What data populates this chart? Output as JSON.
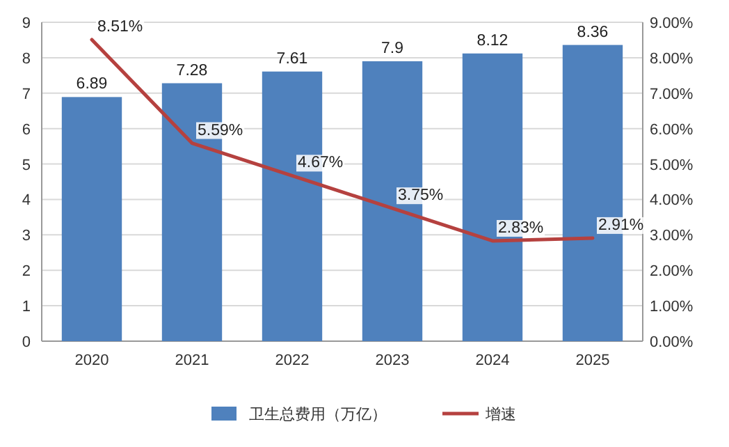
{
  "chart_data": {
    "type": "bar",
    "categories": [
      "2020",
      "2021",
      "2022",
      "2023",
      "2024",
      "2025"
    ],
    "series": [
      {
        "name": "卫生总费用（万亿）",
        "color": "#4f81bd",
        "values": [
          6.89,
          7.28,
          7.61,
          7.9,
          8.12,
          8.36
        ],
        "value_labels": [
          "6.89",
          "7.28",
          "7.61",
          "7.9",
          "8.12",
          "8.36"
        ]
      },
      {
        "name": "增速",
        "type": "line",
        "axis": "y2",
        "color": "#b5413f",
        "values": [
          8.51,
          5.59,
          4.67,
          3.75,
          2.83,
          2.91
        ],
        "value_labels": [
          "8.51%",
          "5.59%",
          "4.67%",
          "3.75%",
          "2.83%",
          "2.91%"
        ]
      }
    ],
    "ylim": [
      0,
      9
    ],
    "yticks": [
      0,
      1,
      2,
      3,
      4,
      5,
      6,
      7,
      8,
      9
    ],
    "y2lim": [
      0,
      9
    ],
    "y2ticks": [
      {
        "value": 0,
        "label": "0.00%"
      },
      {
        "value": 1,
        "label": "1.00%"
      },
      {
        "value": 2,
        "label": "2.00%"
      },
      {
        "value": 3,
        "label": "3.00%"
      },
      {
        "value": 4,
        "label": "4.00%"
      },
      {
        "value": 5,
        "label": "5.00%"
      },
      {
        "value": 6,
        "label": "6.00%"
      },
      {
        "value": 7,
        "label": "7.00%"
      },
      {
        "value": 8,
        "label": "8.00%"
      },
      {
        "value": 9,
        "label": "9.00%"
      }
    ],
    "grid": "y",
    "legend": "bottom"
  }
}
